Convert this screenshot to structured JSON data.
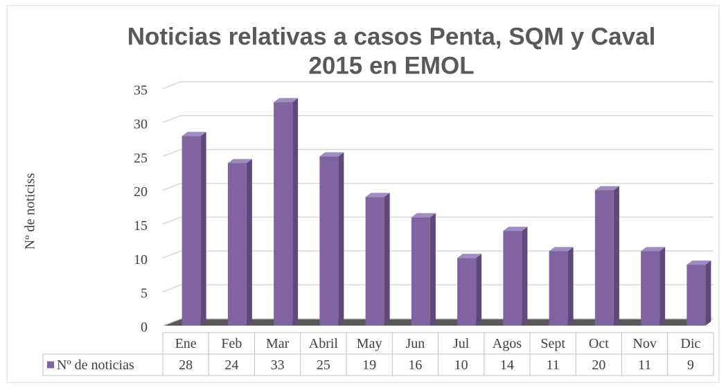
{
  "chart_data": {
    "type": "bar",
    "title": [
      "Noticias relativas a casos Penta, SQM y Caval",
      "2015 en EMOL"
    ],
    "y_label": "Nº de noticiss",
    "categories": [
      "Ene",
      "Feb",
      "Mar",
      "Abril",
      "May",
      "Jun",
      "Jul",
      "Agos",
      "Sept",
      "Oct",
      "Nov",
      "Dic"
    ],
    "series": [
      {
        "name": "Nº de noticias",
        "color": "#8064a2",
        "values": [
          28,
          24,
          33,
          25,
          19,
          16,
          10,
          14,
          11,
          20,
          11,
          9
        ]
      }
    ],
    "ylim": [
      0,
      35
    ],
    "yticks": [
      0,
      5,
      10,
      15,
      20,
      25,
      30,
      35
    ],
    "grid": true,
    "legend": "table"
  }
}
